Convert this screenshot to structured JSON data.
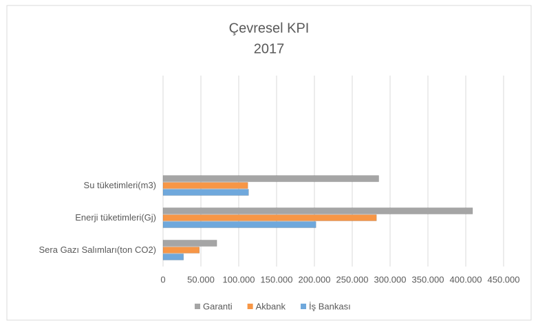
{
  "chart_data": {
    "type": "hbar",
    "title": "Çevresel KPI",
    "subtitle": "2017",
    "categories": [
      "Su tüketimleri(m3)",
      "Enerji tüketimleri(Gj)",
      "Sera Gazı Salımları(ton CO2)"
    ],
    "series": [
      {
        "name": "Garanti",
        "color": "#a5a5a5",
        "values": [
          285000,
          409000,
          71000
        ]
      },
      {
        "name": "Akbank",
        "color": "#f79646",
        "values": [
          112000,
          282000,
          48000
        ]
      },
      {
        "name": "İş Bankası",
        "color": "#6fa8dc",
        "values": [
          113000,
          202000,
          27000
        ]
      }
    ],
    "xlim": [
      0,
      450000
    ],
    "xticks": [
      0,
      {
        "value": 50000,
        "label": "50.000"
      },
      {
        "value": 100000,
        "label": "100.000"
      },
      {
        "value": 150000,
        "label": "150.000"
      },
      {
        "value": 200000,
        "label": "200.000"
      },
      {
        "value": 250000,
        "label": "250.000"
      },
      {
        "value": 300000,
        "label": "300.000"
      },
      {
        "value": 350000,
        "label": "350.000"
      },
      {
        "value": 400000,
        "label": "400.000"
      },
      {
        "value": 450000,
        "label": "450.000"
      }
    ],
    "grid": true,
    "legend": "bottom"
  }
}
